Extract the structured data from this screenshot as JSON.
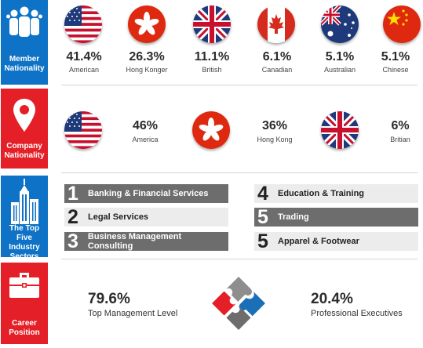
{
  "colors": {
    "blue": "#0e72c6",
    "red": "#e41f28",
    "dark_bar": "#6d6d6d",
    "light_bar": "#ececec"
  },
  "member_nationality": {
    "title": "Member Nationality",
    "icon": "people-group-icon",
    "items": [
      {
        "flag": "usa-flag-icon",
        "pct": "41.4%",
        "label": "American"
      },
      {
        "flag": "hong-kong-flag-icon",
        "pct": "26.3%",
        "label": "Hong Konger"
      },
      {
        "flag": "uk-flag-icon",
        "pct": "11.1%",
        "label": "British"
      },
      {
        "flag": "canada-flag-icon",
        "pct": "6.1%",
        "label": "Canadian"
      },
      {
        "flag": "australia-flag-icon",
        "pct": "5.1%",
        "label": "Australian"
      },
      {
        "flag": "china-flag-icon",
        "pct": "5.1%",
        "label": "Chinese"
      }
    ]
  },
  "company_nationality": {
    "title": "Company Nationality",
    "icon": "location-pin-icon",
    "items": [
      {
        "flag": "usa-flag-icon",
        "pct": "46%",
        "label": "America"
      },
      {
        "flag": "hong-kong-flag-icon",
        "pct": "36%",
        "label": "Hong Kong"
      },
      {
        "flag": "uk-flag-icon",
        "pct": "6%",
        "label": "Britian"
      }
    ]
  },
  "industry_sectors": {
    "title": "The Top Five Industry Sectors",
    "icon": "skyscraper-icon",
    "items": [
      {
        "num": "1",
        "label": "Banking & Financial Services"
      },
      {
        "num": "2",
        "label": "Legal Services"
      },
      {
        "num": "3",
        "label": "Business Management Consulting"
      },
      {
        "num": "4",
        "label": "Education & Training"
      },
      {
        "num": "5",
        "label": "Trading"
      },
      {
        "num": "5",
        "label": "Apparel & Footwear"
      }
    ]
  },
  "career_position": {
    "title": "Career Position",
    "icon": "briefcase-icon",
    "left": {
      "pct": "79.6%",
      "label": "Top Management Level"
    },
    "right": {
      "pct": "20.4%",
      "label": "Professional Executives"
    },
    "graphic": "puzzle-pieces-icon"
  }
}
